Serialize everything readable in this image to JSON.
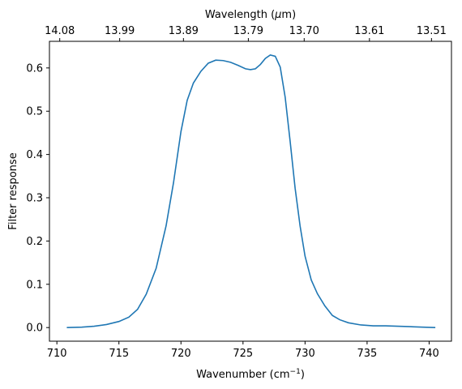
{
  "chart_data": {
    "type": "line",
    "title": "",
    "xlabel": "Wavenumber (cm",
    "xlabel_sup": "−1",
    "xlabel_end": ")",
    "ylabel": "Filter response",
    "top_xlabel": "Wavelength (",
    "top_xlabel_mu": "μ",
    "top_xlabel_end": "m)",
    "xlim": [
      709.4,
      741.8
    ],
    "ylim": [
      -0.0315,
      0.6615
    ],
    "x_ticks": [
      710,
      715,
      720,
      725,
      730,
      735,
      740
    ],
    "y_ticks": [
      0.0,
      0.1,
      0.2,
      0.3,
      0.4,
      0.5,
      0.6
    ],
    "y_tick_labels": [
      "0.0",
      "0.1",
      "0.2",
      "0.3",
      "0.4",
      "0.5",
      "0.6"
    ],
    "top_ticks": [
      {
        "wn": 710.23,
        "label": "14.08"
      },
      {
        "wn": 715.06,
        "label": "13.99"
      },
      {
        "wn": 720.2,
        "label": "13.89"
      },
      {
        "wn": 725.43,
        "label": "13.79"
      },
      {
        "wn": 729.93,
        "label": "13.70"
      },
      {
        "wn": 735.19,
        "label": "13.61"
      },
      {
        "wn": 740.19,
        "label": "13.51"
      }
    ],
    "grid": false,
    "line_color": "#1f77b4",
    "series": [
      {
        "x": [
          710.8,
          712.0,
          713.0,
          714.0,
          715.0,
          715.8,
          716.5,
          717.2,
          718.0,
          718.8,
          719.4,
          720.0,
          720.5,
          721.0,
          721.6,
          722.2,
          722.8,
          723.4,
          724.0,
          724.6,
          725.2,
          725.6,
          726.0,
          726.4,
          726.8,
          727.2,
          727.6,
          728.0,
          728.4,
          728.8,
          729.2,
          729.6,
          730.0,
          730.5,
          731.0,
          731.6,
          732.2,
          732.8,
          733.5,
          734.5,
          735.5,
          736.5,
          737.5,
          738.5,
          739.5,
          740.5
        ],
        "y": [
          0.0,
          0.001,
          0.003,
          0.007,
          0.014,
          0.024,
          0.042,
          0.077,
          0.137,
          0.235,
          0.335,
          0.453,
          0.525,
          0.565,
          0.592,
          0.611,
          0.618,
          0.617,
          0.613,
          0.606,
          0.598,
          0.596,
          0.598,
          0.608,
          0.622,
          0.63,
          0.627,
          0.602,
          0.532,
          0.43,
          0.322,
          0.235,
          0.165,
          0.11,
          0.078,
          0.05,
          0.028,
          0.018,
          0.011,
          0.006,
          0.004,
          0.004,
          0.003,
          0.002,
          0.001,
          0.0
        ]
      }
    ]
  }
}
